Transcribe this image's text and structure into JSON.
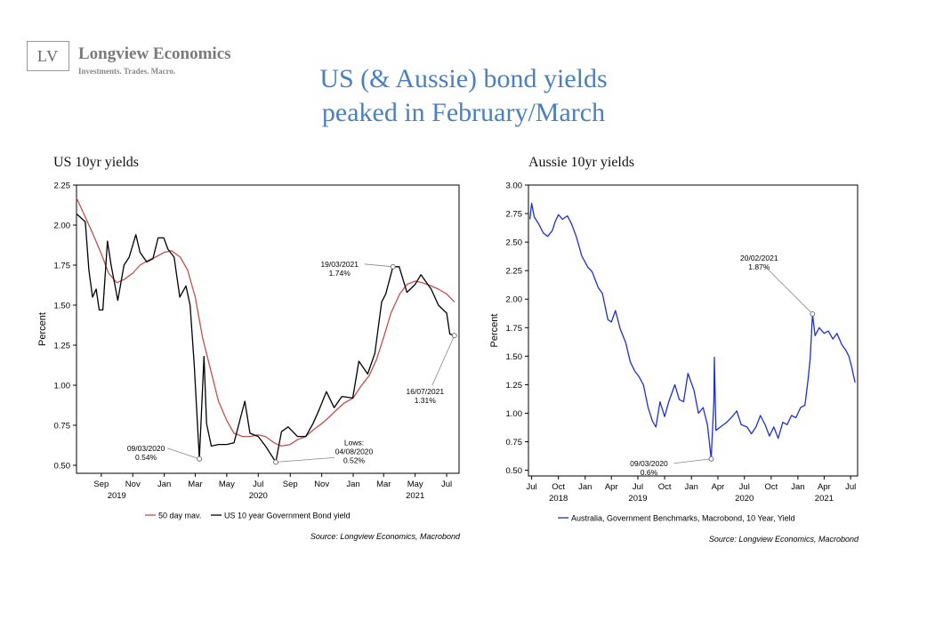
{
  "header": {
    "logo_text": "LV",
    "brand": "Longview Economics",
    "tagline": "Investments. Trades. Macro.",
    "title_line1": "US (& Aussie) bond yields",
    "title_line2": "peaked in February/March"
  },
  "chart_data": [
    {
      "type": "line",
      "title": "US 10yr yields",
      "ylabel": "Percent",
      "ylim": [
        0.45,
        2.25
      ],
      "yticks": [
        "2.25",
        "2.00",
        "1.75",
        "1.50",
        "1.25",
        "1.00",
        "0.75",
        "0.50"
      ],
      "xrange": [
        "2019-07-15",
        "2021-07-25"
      ],
      "xticks_month": [
        {
          "date": "2019-09-01",
          "label": "Sep"
        },
        {
          "date": "2019-11-01",
          "label": "Nov"
        },
        {
          "date": "2020-01-01",
          "label": "Jan"
        },
        {
          "date": "2020-03-01",
          "label": "Mar"
        },
        {
          "date": "2020-05-01",
          "label": "May"
        },
        {
          "date": "2020-07-01",
          "label": "Jul"
        },
        {
          "date": "2020-09-01",
          "label": "Sep"
        },
        {
          "date": "2020-11-01",
          "label": "Nov"
        },
        {
          "date": "2021-01-01",
          "label": "Jan"
        },
        {
          "date": "2021-03-01",
          "label": "Mar"
        },
        {
          "date": "2021-05-01",
          "label": "May"
        },
        {
          "date": "2021-07-01",
          "label": "Jul"
        }
      ],
      "xticks_year": [
        {
          "date": "2019-10-01",
          "label": "2019"
        },
        {
          "date": "2020-07-01",
          "label": "2020"
        },
        {
          "date": "2021-05-01",
          "label": "2021"
        }
      ],
      "series": [
        {
          "name": "50 day mav.",
          "color": "#c0504d",
          "points": [
            [
              "2019-07-15",
              2.17
            ],
            [
              "2019-08-01",
              2.05
            ],
            [
              "2019-08-15",
              1.95
            ],
            [
              "2019-09-01",
              1.82
            ],
            [
              "2019-09-15",
              1.7
            ],
            [
              "2019-10-01",
              1.64
            ],
            [
              "2019-10-15",
              1.66
            ],
            [
              "2019-11-01",
              1.7
            ],
            [
              "2019-11-15",
              1.75
            ],
            [
              "2019-12-01",
              1.78
            ],
            [
              "2019-12-15",
              1.8
            ],
            [
              "2020-01-01",
              1.83
            ],
            [
              "2020-01-15",
              1.84
            ],
            [
              "2020-02-01",
              1.8
            ],
            [
              "2020-02-15",
              1.72
            ],
            [
              "2020-03-01",
              1.55
            ],
            [
              "2020-03-15",
              1.3
            ],
            [
              "2020-04-01",
              1.08
            ],
            [
              "2020-04-15",
              0.9
            ],
            [
              "2020-05-01",
              0.78
            ],
            [
              "2020-05-15",
              0.7
            ],
            [
              "2020-06-01",
              0.68
            ],
            [
              "2020-06-15",
              0.68
            ],
            [
              "2020-07-01",
              0.69
            ],
            [
              "2020-07-15",
              0.68
            ],
            [
              "2020-08-01",
              0.64
            ],
            [
              "2020-08-15",
              0.62
            ],
            [
              "2020-09-01",
              0.63
            ],
            [
              "2020-09-15",
              0.66
            ],
            [
              "2020-10-01",
              0.68
            ],
            [
              "2020-10-15",
              0.72
            ],
            [
              "2020-11-01",
              0.76
            ],
            [
              "2020-11-15",
              0.8
            ],
            [
              "2020-12-01",
              0.85
            ],
            [
              "2020-12-15",
              0.89
            ],
            [
              "2021-01-01",
              0.92
            ],
            [
              "2021-01-15",
              0.99
            ],
            [
              "2021-02-01",
              1.06
            ],
            [
              "2021-02-15",
              1.16
            ],
            [
              "2021-03-01",
              1.3
            ],
            [
              "2021-03-15",
              1.45
            ],
            [
              "2021-04-01",
              1.57
            ],
            [
              "2021-04-15",
              1.63
            ],
            [
              "2021-05-01",
              1.65
            ],
            [
              "2021-05-15",
              1.64
            ],
            [
              "2021-06-01",
              1.62
            ],
            [
              "2021-06-15",
              1.6
            ],
            [
              "2021-07-01",
              1.57
            ],
            [
              "2021-07-16",
              1.52
            ]
          ]
        },
        {
          "name": "US 10 year Government Bond yield",
          "color": "#000000",
          "points": [
            [
              "2019-07-15",
              2.07
            ],
            [
              "2019-07-22",
              2.05
            ],
            [
              "2019-08-01",
              2.02
            ],
            [
              "2019-08-08",
              1.72
            ],
            [
              "2019-08-15",
              1.55
            ],
            [
              "2019-08-22",
              1.6
            ],
            [
              "2019-08-28",
              1.47
            ],
            [
              "2019-09-04",
              1.47
            ],
            [
              "2019-09-13",
              1.9
            ],
            [
              "2019-09-20",
              1.75
            ],
            [
              "2019-10-03",
              1.53
            ],
            [
              "2019-10-15",
              1.75
            ],
            [
              "2019-10-25",
              1.8
            ],
            [
              "2019-11-07",
              1.94
            ],
            [
              "2019-11-15",
              1.83
            ],
            [
              "2019-11-28",
              1.77
            ],
            [
              "2019-12-10",
              1.79
            ],
            [
              "2019-12-20",
              1.92
            ],
            [
              "2019-12-31",
              1.92
            ],
            [
              "2020-01-08",
              1.85
            ],
            [
              "2020-01-20",
              1.8
            ],
            [
              "2020-01-31",
              1.55
            ],
            [
              "2020-02-12",
              1.62
            ],
            [
              "2020-02-20",
              1.5
            ],
            [
              "2020-02-28",
              1.13
            ],
            [
              "2020-03-09",
              0.54
            ],
            [
              "2020-03-18",
              1.18
            ],
            [
              "2020-03-23",
              0.76
            ],
            [
              "2020-04-01",
              0.62
            ],
            [
              "2020-04-15",
              0.63
            ],
            [
              "2020-05-01",
              0.63
            ],
            [
              "2020-05-15",
              0.64
            ],
            [
              "2020-06-05",
              0.9
            ],
            [
              "2020-06-15",
              0.7
            ],
            [
              "2020-07-01",
              0.68
            ],
            [
              "2020-07-15",
              0.62
            ],
            [
              "2020-08-04",
              0.52
            ],
            [
              "2020-08-15",
              0.71
            ],
            [
              "2020-08-28",
              0.74
            ],
            [
              "2020-09-15",
              0.68
            ],
            [
              "2020-10-01",
              0.68
            ],
            [
              "2020-10-15",
              0.76
            ],
            [
              "2020-10-26",
              0.84
            ],
            [
              "2020-11-10",
              0.96
            ],
            [
              "2020-11-25",
              0.86
            ],
            [
              "2020-12-10",
              0.93
            ],
            [
              "2020-12-31",
              0.92
            ],
            [
              "2021-01-12",
              1.15
            ],
            [
              "2021-01-29",
              1.07
            ],
            [
              "2021-02-12",
              1.2
            ],
            [
              "2021-02-25",
              1.52
            ],
            [
              "2021-03-05",
              1.57
            ],
            [
              "2021-03-19",
              1.74
            ],
            [
              "2021-03-31",
              1.74
            ],
            [
              "2021-04-15",
              1.58
            ],
            [
              "2021-05-01",
              1.63
            ],
            [
              "2021-05-12",
              1.69
            ],
            [
              "2021-06-01",
              1.6
            ],
            [
              "2021-06-15",
              1.5
            ],
            [
              "2021-07-01",
              1.45
            ],
            [
              "2021-07-07",
              1.32
            ],
            [
              "2021-07-16",
              1.31
            ]
          ]
        }
      ],
      "annotations": [
        {
          "text": "19/03/2021",
          "text2": "1.74%",
          "date": "2021-03-19",
          "value": 1.74
        },
        {
          "text": "09/03/2020",
          "text2": "0.54%",
          "date": "2020-03-09",
          "value": 0.54
        },
        {
          "text": "Lows:",
          "text2": "04/08/2020",
          "text3": "0.52%",
          "date": "2020-08-04",
          "value": 0.52
        },
        {
          "text": "16/07/2021",
          "text2": "1.31%",
          "date": "2021-07-16",
          "value": 1.31
        }
      ],
      "source": "Source: Longview Economics, Macrobond"
    },
    {
      "type": "line",
      "title": "Aussie 10yr yields",
      "ylabel": "Percent",
      "ylim": [
        0.45,
        3.0
      ],
      "yticks": [
        "3.00",
        "2.75",
        "2.50",
        "2.25",
        "2.00",
        "1.75",
        "1.50",
        "1.25",
        "1.00",
        "0.75",
        "0.50"
      ],
      "xrange": [
        "2018-06-20",
        "2021-07-25"
      ],
      "xticks_month": [
        {
          "date": "2018-07-01",
          "label": "Jul"
        },
        {
          "date": "2018-10-01",
          "label": "Oct"
        },
        {
          "date": "2019-01-01",
          "label": "Jan"
        },
        {
          "date": "2019-04-01",
          "label": "Apr"
        },
        {
          "date": "2019-07-01",
          "label": "Jul"
        },
        {
          "date": "2019-10-01",
          "label": "Oct"
        },
        {
          "date": "2020-01-01",
          "label": "Jan"
        },
        {
          "date": "2020-04-01",
          "label": "Apr"
        },
        {
          "date": "2020-07-01",
          "label": "Jul"
        },
        {
          "date": "2020-10-01",
          "label": "Oct"
        },
        {
          "date": "2021-01-01",
          "label": "Jan"
        },
        {
          "date": "2021-04-01",
          "label": "Apr"
        },
        {
          "date": "2021-07-01",
          "label": "Jul"
        }
      ],
      "xticks_year": [
        {
          "date": "2018-10-01",
          "label": "2018"
        },
        {
          "date": "2019-07-01",
          "label": "2019"
        },
        {
          "date": "2020-07-01",
          "label": "2020"
        },
        {
          "date": "2021-04-01",
          "label": "2021"
        }
      ],
      "series": [
        {
          "name": "Australia, Government Benchmarks, Macrobond, 10 Year, Yield",
          "color": "#1f2fd0",
          "points": [
            [
              "2018-06-25",
              2.7
            ],
            [
              "2018-07-01",
              2.84
            ],
            [
              "2018-07-10",
              2.72
            ],
            [
              "2018-07-25",
              2.66
            ],
            [
              "2018-08-10",
              2.58
            ],
            [
              "2018-08-25",
              2.55
            ],
            [
              "2018-09-10",
              2.6
            ],
            [
              "2018-09-20",
              2.68
            ],
            [
              "2018-10-01",
              2.74
            ],
            [
              "2018-10-15",
              2.7
            ],
            [
              "2018-11-01",
              2.73
            ],
            [
              "2018-11-15",
              2.66
            ],
            [
              "2018-12-01",
              2.55
            ],
            [
              "2018-12-20",
              2.38
            ],
            [
              "2019-01-10",
              2.28
            ],
            [
              "2019-01-25",
              2.24
            ],
            [
              "2019-02-15",
              2.1
            ],
            [
              "2019-03-01",
              2.05
            ],
            [
              "2019-03-20",
              1.82
            ],
            [
              "2019-04-01",
              1.8
            ],
            [
              "2019-04-15",
              1.9
            ],
            [
              "2019-05-01",
              1.74
            ],
            [
              "2019-05-20",
              1.62
            ],
            [
              "2019-06-05",
              1.45
            ],
            [
              "2019-06-20",
              1.37
            ],
            [
              "2019-07-05",
              1.32
            ],
            [
              "2019-07-20",
              1.25
            ],
            [
              "2019-08-05",
              1.05
            ],
            [
              "2019-08-20",
              0.93
            ],
            [
              "2019-09-01",
              0.88
            ],
            [
              "2019-09-15",
              1.1
            ],
            [
              "2019-10-01",
              0.97
            ],
            [
              "2019-10-15",
              1.1
            ],
            [
              "2019-11-05",
              1.25
            ],
            [
              "2019-11-20",
              1.12
            ],
            [
              "2019-12-05",
              1.1
            ],
            [
              "2019-12-20",
              1.35
            ],
            [
              "2020-01-10",
              1.2
            ],
            [
              "2020-01-25",
              1.0
            ],
            [
              "2020-02-10",
              1.05
            ],
            [
              "2020-02-25",
              0.9
            ],
            [
              "2020-03-09",
              0.6
            ],
            [
              "2020-03-18",
              1.1
            ],
            [
              "2020-03-20",
              1.49
            ],
            [
              "2020-03-25",
              0.85
            ],
            [
              "2020-04-10",
              0.88
            ],
            [
              "2020-05-01",
              0.92
            ],
            [
              "2020-05-20",
              0.97
            ],
            [
              "2020-06-05",
              1.02
            ],
            [
              "2020-06-20",
              0.9
            ],
            [
              "2020-07-10",
              0.88
            ],
            [
              "2020-07-25",
              0.82
            ],
            [
              "2020-08-10",
              0.88
            ],
            [
              "2020-08-25",
              0.98
            ],
            [
              "2020-09-10",
              0.9
            ],
            [
              "2020-09-25",
              0.8
            ],
            [
              "2020-10-10",
              0.88
            ],
            [
              "2020-10-25",
              0.78
            ],
            [
              "2020-11-10",
              0.92
            ],
            [
              "2020-11-25",
              0.9
            ],
            [
              "2020-12-10",
              0.98
            ],
            [
              "2020-12-25",
              0.96
            ],
            [
              "2021-01-10",
              1.05
            ],
            [
              "2021-01-25",
              1.07
            ],
            [
              "2021-02-05",
              1.3
            ],
            [
              "2021-02-12",
              1.48
            ],
            [
              "2021-02-20",
              1.87
            ],
            [
              "2021-03-01",
              1.68
            ],
            [
              "2021-03-15",
              1.75
            ],
            [
              "2021-04-01",
              1.7
            ],
            [
              "2021-04-15",
              1.72
            ],
            [
              "2021-05-01",
              1.65
            ],
            [
              "2021-05-15",
              1.7
            ],
            [
              "2021-06-01",
              1.6
            ],
            [
              "2021-06-15",
              1.55
            ],
            [
              "2021-06-25",
              1.5
            ],
            [
              "2021-07-05",
              1.4
            ],
            [
              "2021-07-16",
              1.27
            ]
          ]
        }
      ],
      "annotations": [
        {
          "text": "20/02/2021",
          "text2": "1.87%",
          "date": "2021-02-20",
          "value": 1.87
        },
        {
          "text": "09/03/2020",
          "text2": "0.6%",
          "date": "2020-03-09",
          "value": 0.6
        }
      ],
      "source": "Source: Longview Economics, Macrobond"
    }
  ]
}
